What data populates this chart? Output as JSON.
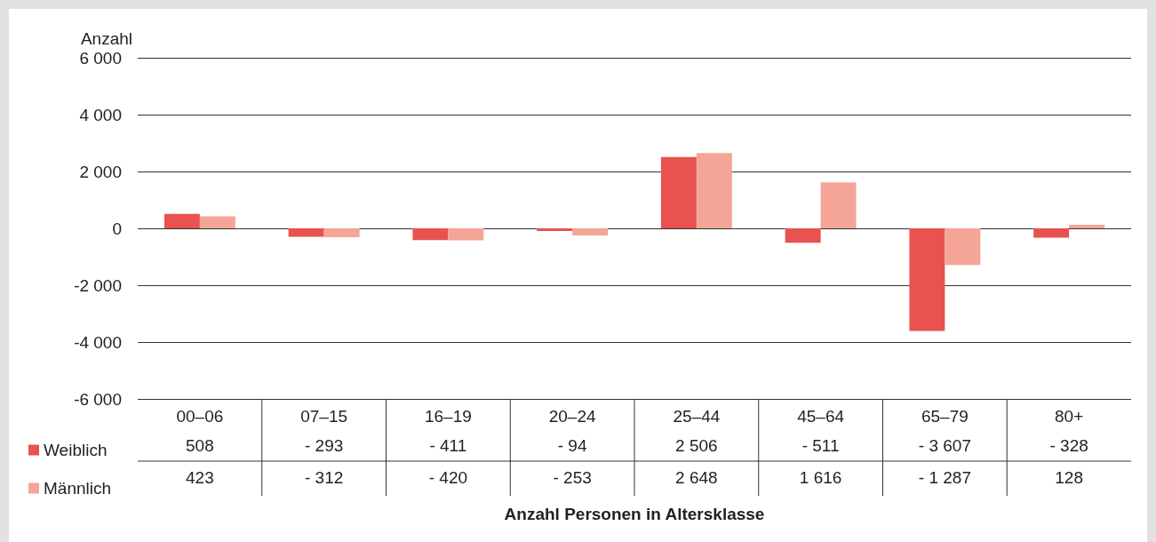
{
  "chart_data": {
    "type": "bar",
    "ylabel": "Anzahl",
    "xlabel": "Anzahl Personen in Altersklasse",
    "categories": [
      "00–06",
      "07–15",
      "16–19",
      "20–24",
      "25–44",
      "45–64",
      "65–79",
      "80+"
    ],
    "series": [
      {
        "name": "Weiblich",
        "color": "#e8524f",
        "values": [
          508,
          -293,
          -411,
          -94,
          2506,
          -511,
          -3607,
          -328
        ],
        "value_labels": [
          "508",
          "- 293",
          "- 411",
          "- 94",
          "2 506",
          "- 511",
          "- 3 607",
          "- 328"
        ]
      },
      {
        "name": "Männlich",
        "color": "#f4a597",
        "values": [
          423,
          -312,
          -420,
          -253,
          2648,
          1616,
          -1287,
          128
        ],
        "value_labels": [
          "423",
          "- 312",
          "- 420",
          "- 253",
          "2 648",
          "1 616",
          "- 1 287",
          "128"
        ]
      }
    ],
    "ylim": [
      -6000,
      6000
    ],
    "yticks": [
      {
        "value": -6000,
        "label": "-6 000"
      },
      {
        "value": -4000,
        "label": "-4 000"
      },
      {
        "value": -2000,
        "label": "-2 000"
      },
      0,
      {
        "value": 2000,
        "label": "2 000"
      },
      {
        "value": 4000,
        "label": "4 000"
      },
      {
        "value": 6000,
        "label": "6 000"
      }
    ],
    "grid": "y",
    "legend": "bottom left"
  }
}
